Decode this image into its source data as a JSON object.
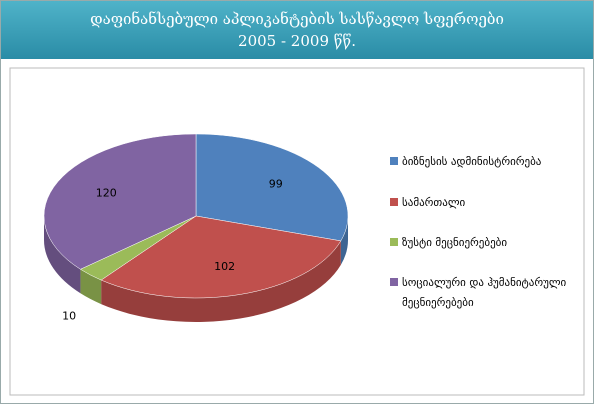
{
  "chart_data": {
    "type": "pie3d",
    "title": [
      "დაფინანსებული აპლიკანტების სასწავლო სფეროები",
      "2005 - 2009 წწ."
    ],
    "categories": [
      "ბიზნესის ადმინისტრირება",
      "სამართალი",
      "ზუსტი მეცნიერებები",
      "სოციალური და ჰუმანიტარული მეცნიერებები"
    ],
    "values": [
      99,
      102,
      10,
      120
    ],
    "colors": [
      "#4f81bd",
      "#c0504d",
      "#9bbb59",
      "#8064a2"
    ],
    "legend": "right"
  }
}
